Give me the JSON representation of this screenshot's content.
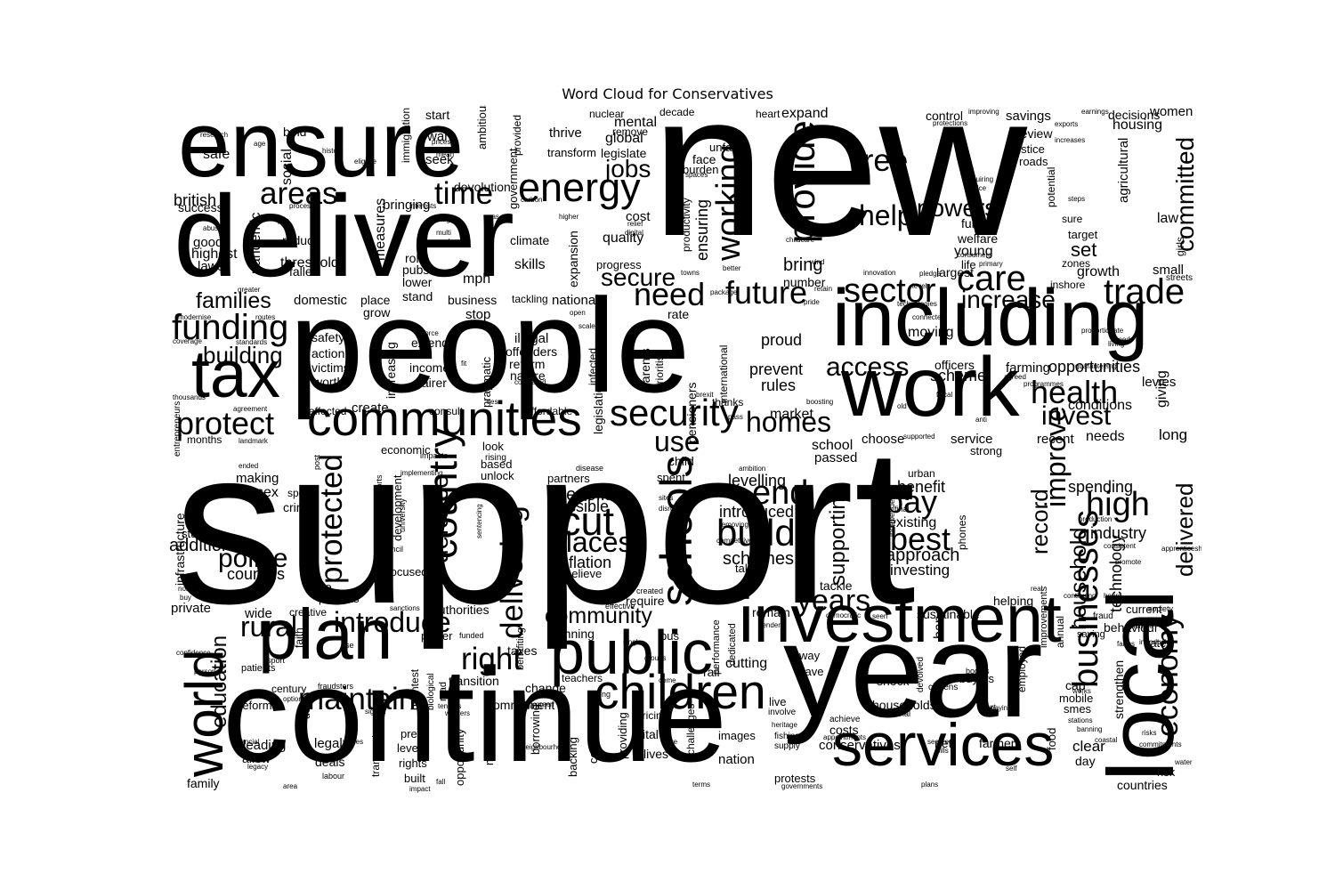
{
  "title": "Word Cloud for Conservatives",
  "text_color": "#000000",
  "background_color": "#ffffff",
  "words": [
    "support",
    "new",
    "people",
    "year",
    "continue",
    "deliver",
    "ensure",
    "local",
    "work",
    "including",
    "tax",
    "investment",
    "services",
    "plan",
    "public",
    "communities",
    "world",
    "children",
    "security",
    "schools",
    "energy",
    "areas",
    "time",
    "provide",
    "free",
    "help",
    "powers",
    "sector",
    "care",
    "trade",
    "future",
    "working",
    "need",
    "secure",
    "jobs",
    "funding",
    "families",
    "protect",
    "building",
    "access",
    "health",
    "invest",
    "increase",
    "homes",
    "use",
    "country",
    "protected",
    "delivering",
    "cut",
    "places",
    "build",
    "end",
    "pay",
    "best",
    "improve",
    "record",
    "high",
    "businesses",
    "household",
    "economy",
    "delivered",
    "committed",
    "maintain",
    "right",
    "introduce",
    "rural",
    "education",
    "community",
    "years",
    "supporting",
    "police",
    "councils",
    "additional",
    "defence",
    "benefits",
    "possible",
    "inflation",
    "schemes",
    "introduced",
    "levelling",
    "approach",
    "investing",
    "benefit",
    "existing",
    "spending",
    "industry",
    "technology",
    "conditions",
    "opportunities",
    "scheme",
    "farming",
    "officers",
    "moving",
    "prevent",
    "rules",
    "proud",
    "market",
    "school",
    "passed",
    "choose",
    "service",
    "strong",
    "recent",
    "needs",
    "long",
    "giving",
    "levies",
    "persist",
    "safe",
    "british",
    "success",
    "good",
    "highest",
    "laws",
    "pandemic",
    "threshold",
    "reduce",
    "fallen",
    "domestic",
    "measures",
    "bringing",
    "devolution",
    "roll",
    "pubs",
    "lower",
    "stand",
    "mph",
    "skills",
    "climate",
    "stop",
    "national",
    "business",
    "tackling",
    "rate",
    "expansion",
    "progress",
    "quality",
    "cost",
    "bring",
    "number",
    "expand",
    "mental",
    "remove",
    "global",
    "legislate",
    "transform",
    "thrive",
    "want",
    "seek",
    "start",
    "bold",
    "social",
    "immigration",
    "ambitious",
    "government",
    "provided",
    "nuclear",
    "decade",
    "heart",
    "face",
    "burden",
    "unfair",
    "productivity",
    "ensuring",
    "migration",
    "control",
    "savings",
    "women",
    "housing",
    "decisions",
    "review",
    "justice",
    "roads",
    "potential",
    "agricultural",
    "law",
    "fund",
    "welfare",
    "young",
    "life",
    "largest",
    "small",
    "zones",
    "inshore",
    "growth",
    "set",
    "target",
    "sure",
    "girls",
    "streets",
    "safety",
    "action",
    "victims",
    "worth",
    "increasing",
    "place",
    "grow",
    "illegal",
    "offenders",
    "reform",
    "nature",
    "income",
    "fairer",
    "extend",
    "parents",
    "prioritise",
    "toughen",
    "infected",
    "legislation",
    "pensioners",
    "international",
    "thanks",
    "affected",
    "create",
    "consult",
    "affordable",
    "pragmatic",
    "look",
    "rising",
    "based",
    "unlock",
    "child",
    "spent",
    "partners",
    "disease",
    "taken",
    "creative",
    "projects",
    "able",
    "private",
    "wide",
    "faith",
    "authorities",
    "power",
    "funded",
    "benefiting",
    "planning",
    "taxes",
    "transition",
    "commitment",
    "change",
    "teachers",
    "going",
    "companies",
    "providing",
    "backing",
    "borrowing",
    "migrants",
    "opportunity",
    "built",
    "rights",
    "level",
    "press",
    "transport",
    "legal",
    "deals",
    "leading",
    "allow",
    "family",
    "labour",
    "century",
    "reforms",
    "patients",
    "sport",
    "debt",
    "brightest",
    "biological",
    "road",
    "fraudsters",
    "rise",
    "vital",
    "lives",
    "nation",
    "images",
    "challenges",
    "pricing",
    "bus",
    "rail",
    "cutting",
    "save",
    "way",
    "remain",
    "dedicated",
    "performance",
    "helping",
    "saving",
    "fraud",
    "improvements",
    "employed",
    "annual",
    "cap",
    "shock",
    "households",
    "industrial",
    "buyers",
    "bodies",
    "citizens",
    "devolved",
    "mobile",
    "smes",
    "food",
    "clear",
    "day",
    "strengthen",
    "behaviour",
    "current",
    "rates",
    "society",
    "risk",
    "countries",
    "farmers",
    "net",
    "conservatives",
    "costs",
    "achieve",
    "protests",
    "fishing",
    "supply",
    "live",
    "involve",
    "sustainable",
    "ban",
    "require",
    "created",
    "effective",
    "tackle",
    "infrastructure",
    "students",
    "entrepreneurs",
    "months",
    "making",
    "major",
    "sex",
    "spend",
    "crime",
    "sentencing",
    "strategic",
    "university",
    "council",
    "focused",
    "believe",
    "economic",
    "development",
    "sports",
    "impacts",
    "post",
    "independent",
    "final",
    "urban",
    "phones"
  ],
  "small_words": [
    "research",
    "age",
    "eligible",
    "history",
    "process",
    "hs2",
    "abuse",
    "greater",
    "modernise",
    "routes",
    "coverage",
    "standards",
    "thousands",
    "agreement",
    "landmark",
    "ended",
    "implementing",
    "non",
    "buy",
    "confidence",
    "personal",
    "options",
    "signed",
    "values",
    "financial",
    "legacy",
    "fall",
    "area",
    "impact",
    "workers",
    "tenants",
    "neighbourhood",
    "land",
    "green",
    "single",
    "groups",
    "come",
    "terms",
    "value",
    "heritage",
    "gender",
    "governments",
    "appointments",
    "secured",
    "bills",
    "plans",
    "self",
    "water",
    "commitments",
    "risks",
    "coastal",
    "banning",
    "stations",
    "works",
    "farms",
    "introducing",
    "offshore",
    "industries",
    "earnings",
    "exports",
    "increases",
    "protections",
    "improving",
    "requiring",
    "choice",
    "steps",
    "primary",
    "consumers",
    "pledge",
    "innovation",
    "levels",
    "technologies",
    "retain",
    "pride",
    "childcare",
    "wind",
    "package",
    "better",
    "spaces",
    "relief",
    "digital",
    "higher",
    "carbon",
    "gas",
    "multi",
    "towns",
    "interests",
    "prices",
    "term",
    "mean",
    "taught",
    "modern",
    "force",
    "scale",
    "open",
    "fit",
    "ties",
    "compared",
    "boosting",
    "supported",
    "anti",
    "agreed",
    "programmes",
    "fiscal",
    "old",
    "speed",
    "living",
    "guaranteeing",
    "proportionate",
    "connected",
    "competitive",
    "removing",
    "ambition",
    "sites",
    "disruptive",
    "consistent",
    "production",
    "apprenticeships",
    "promote",
    "hours",
    "continuing",
    "sanctions",
    "democratic",
    "seen",
    "court",
    "paying",
    "real",
    "brexit",
    "pass"
  ]
}
